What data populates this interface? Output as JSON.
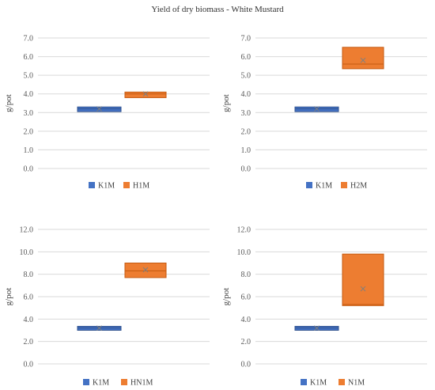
{
  "title": "Yield of dry biomass - White Mustard",
  "colors": {
    "K": "#4472C4",
    "K_edge": "#2F528F",
    "H": "#ED7D31",
    "H_edge": "#C55A11",
    "grid": "#d9d9d9",
    "mean": "#7f7f7f"
  },
  "chart_data": [
    {
      "type": "box",
      "ylabel": "g/pot",
      "ylim": [
        0,
        7
      ],
      "yticks": [
        "0.0",
        "1.0",
        "2.0",
        "3.0",
        "4.0",
        "5.0",
        "6.0",
        "7.0"
      ],
      "grid": true,
      "legend": "bottom",
      "series": [
        {
          "name": "K1M",
          "q1": 3.05,
          "median": 3.2,
          "q3": 3.3,
          "min": 3.05,
          "max": 3.3,
          "mean": 3.2
        },
        {
          "name": "H1M",
          "q1": 3.8,
          "median": 4.0,
          "q3": 4.1,
          "min": 3.8,
          "max": 4.1,
          "mean": 4.0
        }
      ]
    },
    {
      "type": "box",
      "ylabel": "g/pot",
      "ylim": [
        0,
        7
      ],
      "yticks": [
        "0.0",
        "1.0",
        "2.0",
        "3.0",
        "4.0",
        "5.0",
        "6.0",
        "7.0"
      ],
      "grid": true,
      "legend": "bottom",
      "series": [
        {
          "name": "K1M",
          "q1": 3.05,
          "median": 3.2,
          "q3": 3.3,
          "min": 3.05,
          "max": 3.3,
          "mean": 3.2
        },
        {
          "name": "H2M",
          "q1": 5.35,
          "median": 5.6,
          "q3": 6.5,
          "min": 5.35,
          "max": 6.5,
          "mean": 5.8
        }
      ]
    },
    {
      "type": "box",
      "ylabel": "g/pot",
      "ylim": [
        0,
        12
      ],
      "yticks": [
        "0.0",
        "2.0",
        "4.0",
        "6.0",
        "8.0",
        "10.0",
        "12.0"
      ],
      "grid": true,
      "legend": "bottom",
      "series": [
        {
          "name": "K1M",
          "q1": 3.0,
          "median": 3.2,
          "q3": 3.35,
          "min": 3.0,
          "max": 3.35,
          "mean": 3.2
        },
        {
          "name": "HN1M",
          "q1": 7.7,
          "median": 8.3,
          "q3": 9.0,
          "min": 7.7,
          "max": 9.0,
          "mean": 8.4
        }
      ]
    },
    {
      "type": "box",
      "ylabel": "g/pot",
      "ylim": [
        0,
        12
      ],
      "yticks": [
        "0.0",
        "2.0",
        "4.0",
        "6.0",
        "8.0",
        "10.0",
        "12.0"
      ],
      "grid": true,
      "legend": "bottom",
      "series": [
        {
          "name": "K1M",
          "q1": 3.0,
          "median": 3.2,
          "q3": 3.35,
          "min": 3.0,
          "max": 3.35,
          "mean": 3.2
        },
        {
          "name": "N1M",
          "q1": 5.2,
          "median": 5.3,
          "q3": 9.8,
          "min": 5.2,
          "max": 9.8,
          "mean": 6.7
        }
      ]
    }
  ]
}
